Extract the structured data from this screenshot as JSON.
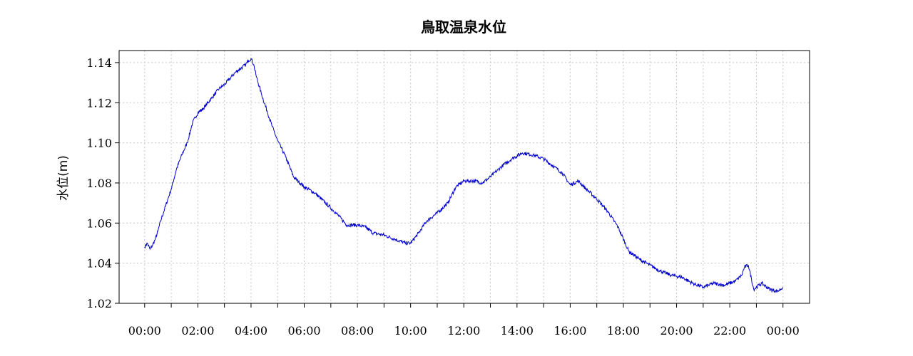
{
  "chart_data": {
    "type": "line",
    "title": "鳥取温泉水位",
    "xlabel": "",
    "ylabel": "水位(m)",
    "ylim": [
      1.02,
      1.146
    ],
    "xlim": [
      -0.96,
      25
    ],
    "y_ticks": [
      "1.02",
      "1.04",
      "1.06",
      "1.08",
      "1.10",
      "1.12",
      "1.14"
    ],
    "x_ticks": [
      "00:00",
      "02:00",
      "04:00",
      "06:00",
      "08:00",
      "10:00",
      "12:00",
      "14:00",
      "16:00",
      "18:00",
      "20:00",
      "22:00",
      "00:00"
    ],
    "x_minor_ticks_hours": [
      1,
      3,
      5,
      7,
      9,
      11,
      13,
      15,
      17,
      19,
      21,
      23
    ],
    "grid": true,
    "series": [
      {
        "color": "#0000cc",
        "x": [
          0.0,
          0.1,
          0.2,
          0.3,
          0.4,
          0.5,
          0.6,
          0.75,
          0.9,
          1.0,
          1.2,
          1.4,
          1.6,
          1.8,
          2.0,
          2.2,
          2.5,
          2.8,
          3.0,
          3.2,
          3.4,
          3.6,
          3.8,
          3.9,
          4.0,
          4.1,
          4.2,
          4.4,
          4.6,
          4.8,
          5.0,
          5.3,
          5.6,
          6.0,
          6.4,
          6.8,
          7.2,
          7.6,
          8.0,
          8.3,
          8.6,
          9.0,
          9.4,
          9.8,
          10.0,
          10.3,
          10.6,
          11.0,
          11.4,
          11.7,
          12.0,
          12.4,
          12.7,
          13.0,
          13.4,
          13.8,
          14.2,
          14.6,
          15.0,
          15.4,
          15.7,
          16.0,
          16.3,
          16.6,
          17.0,
          17.4,
          17.8,
          18.2,
          18.6,
          19.0,
          19.4,
          19.8,
          20.2,
          20.6,
          21.0,
          21.4,
          21.8,
          22.2,
          22.45,
          22.55,
          22.7,
          22.9,
          23.2,
          23.5,
          23.8,
          24.0
        ],
        "y": [
          1.048,
          1.05,
          1.047,
          1.049,
          1.052,
          1.056,
          1.061,
          1.067,
          1.073,
          1.077,
          1.087,
          1.094,
          1.1,
          1.11,
          1.115,
          1.117,
          1.122,
          1.127,
          1.129,
          1.132,
          1.135,
          1.137,
          1.139,
          1.141,
          1.142,
          1.139,
          1.133,
          1.124,
          1.116,
          1.108,
          1.101,
          1.093,
          1.083,
          1.078,
          1.075,
          1.07,
          1.065,
          1.059,
          1.059,
          1.058,
          1.055,
          1.054,
          1.052,
          1.05,
          1.05,
          1.055,
          1.061,
          1.065,
          1.07,
          1.078,
          1.081,
          1.081,
          1.08,
          1.083,
          1.088,
          1.092,
          1.095,
          1.094,
          1.092,
          1.088,
          1.085,
          1.079,
          1.081,
          1.077,
          1.072,
          1.066,
          1.058,
          1.046,
          1.042,
          1.039,
          1.036,
          1.034,
          1.033,
          1.03,
          1.028,
          1.03,
          1.029,
          1.031,
          1.034,
          1.038,
          1.039,
          1.027,
          1.03,
          1.027,
          1.026,
          1.028
        ]
      }
    ]
  }
}
